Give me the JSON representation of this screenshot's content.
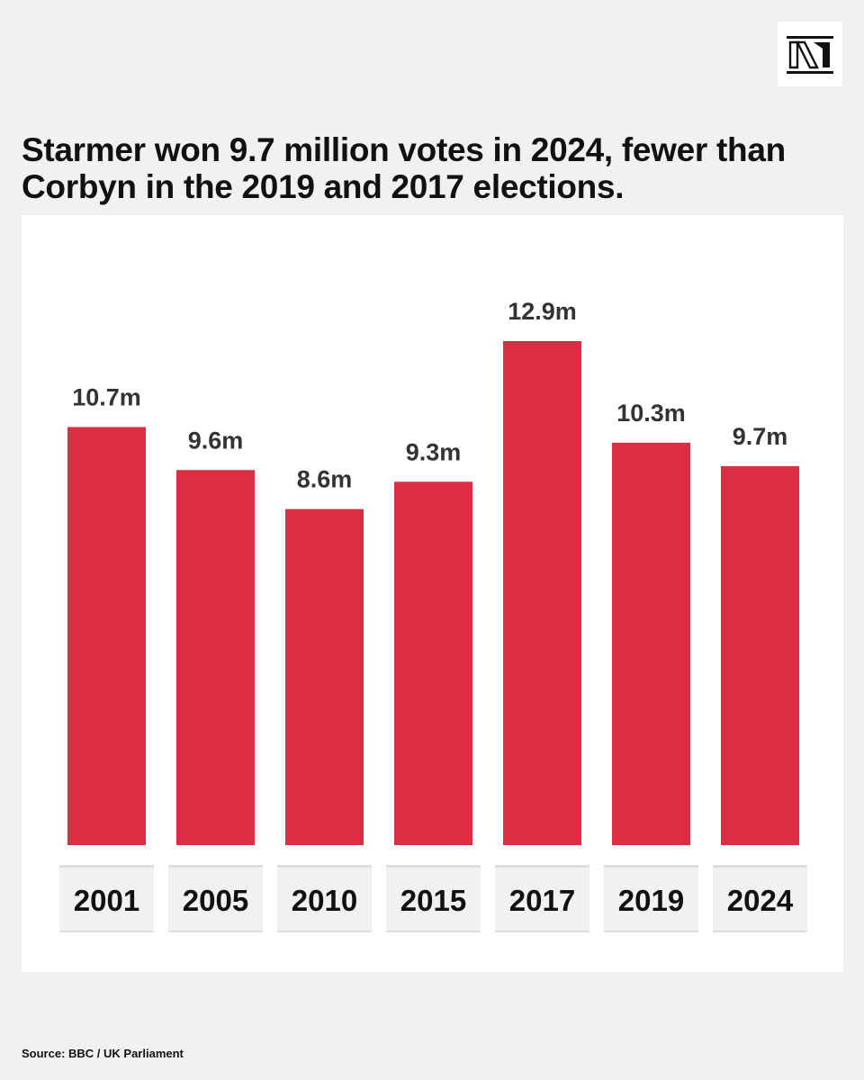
{
  "brand": {
    "logo_text": "N"
  },
  "colors": {
    "bar": "#dc2e43",
    "background": "#f1f1f1",
    "card": "#ffffff",
    "tick_box": "#f1f1f1",
    "tick_border": "#dedede"
  },
  "chart_data": {
    "type": "bar",
    "title": "Starmer won 9.7 million votes in 2024, fewer than Corbyn in the 2019 and 2017 elections.",
    "xlabel": "",
    "ylabel": "",
    "categories": [
      "2001",
      "2005",
      "2010",
      "2015",
      "2017",
      "2019",
      "2024"
    ],
    "values": [
      10.7,
      9.6,
      8.6,
      9.3,
      12.9,
      10.3,
      9.7
    ],
    "value_labels": [
      "10.7m",
      "9.6m",
      "8.6m",
      "9.3m",
      "12.9m",
      "10.3m",
      "9.7m"
    ],
    "unit": "million votes",
    "ylim": [
      0,
      12.9
    ],
    "grid": false,
    "legend": "none"
  },
  "source": "Source: BBC / UK Parliament"
}
